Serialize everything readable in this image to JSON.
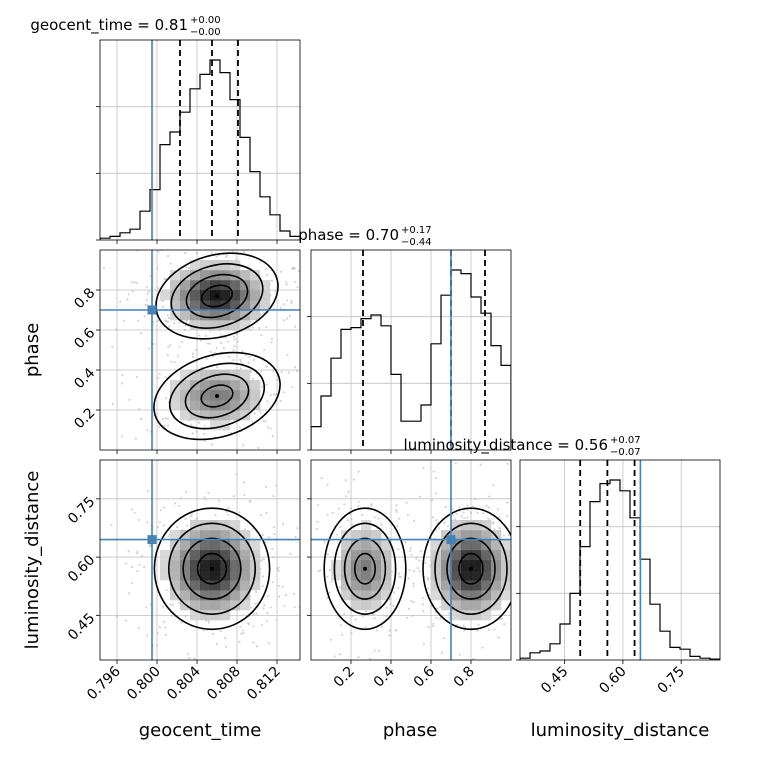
{
  "chart_data": {
    "type": "corner",
    "parameters": [
      "geocent_time",
      "phase",
      "luminosity_distance"
    ],
    "ranges": {
      "geocent_time": [
        0.7943,
        0.8143
      ],
      "phase": [
        0.0,
        1.0
      ],
      "luminosity_distance": [
        0.335,
        0.85
      ]
    },
    "truths": {
      "geocent_time": 0.7995,
      "phase": 0.7,
      "luminosity_distance": 0.645
    },
    "quantiles": {
      "geocent_time": [
        0.8023,
        0.8055,
        0.8081
      ],
      "phase": [
        0.26,
        0.7,
        0.87
      ],
      "luminosity_distance": [
        0.49,
        0.56,
        0.63
      ]
    },
    "titles": {
      "geocent_time": {
        "main": "geocent_time = 0.81",
        "plus": "+0.00",
        "minus": "−0.00"
      },
      "phase": {
        "main": "phase = 0.70",
        "plus": "+0.17",
        "minus": "−0.44"
      },
      "luminosity_distance": {
        "main": "luminosity_distance = 0.56",
        "plus": "+0.07",
        "minus": "−0.07"
      }
    },
    "ticks": {
      "geocent_time": [
        {
          "v": 0.796,
          "label": "0.796"
        },
        {
          "v": 0.8,
          "label": "0.800"
        },
        {
          "v": 0.804,
          "label": "0.804"
        },
        {
          "v": 0.808,
          "label": "0.808"
        },
        {
          "v": 0.812,
          "label": "0.812"
        }
      ],
      "phase": [
        {
          "v": 0.2,
          "label": "0.2"
        },
        {
          "v": 0.4,
          "label": "0.4"
        },
        {
          "v": 0.6,
          "label": "0.6"
        },
        {
          "v": 0.8,
          "label": "0.8"
        }
      ],
      "luminosity_distance": [
        {
          "v": 0.45,
          "label": "0.45"
        },
        {
          "v": 0.6,
          "label": "0.60"
        },
        {
          "v": 0.75,
          "label": "0.75"
        }
      ]
    },
    "hist_bins": 20,
    "histograms": {
      "geocent_time": [
        0.01,
        0.02,
        0.04,
        0.06,
        0.16,
        0.28,
        0.53,
        0.6,
        0.71,
        0.84,
        0.92,
        1.0,
        0.93,
        0.78,
        0.57,
        0.38,
        0.24,
        0.14,
        0.05,
        0.02
      ],
      "phase": [
        0.13,
        0.3,
        0.51,
        0.67,
        0.68,
        0.73,
        0.75,
        0.69,
        0.42,
        0.16,
        0.16,
        0.25,
        0.59,
        0.86,
        1.0,
        0.98,
        0.85,
        0.76,
        0.58,
        0.47
      ],
      "luminosity_distance": [
        0.01,
        0.04,
        0.05,
        0.09,
        0.2,
        0.37,
        0.63,
        0.88,
        0.98,
        1.0,
        0.94,
        0.79,
        0.56,
        0.31,
        0.16,
        0.07,
        0.06,
        0.02,
        0.01,
        0.005
      ]
    },
    "blobs_2d": [
      {
        "pair": [
          "geocent_time",
          "phase"
        ],
        "cx": 0.806,
        "cy": 0.77,
        "sx": 0.0026,
        "sy": 0.085,
        "rot": -0.28,
        "w": 1.0
      },
      {
        "pair": [
          "geocent_time",
          "phase"
        ],
        "cx": 0.806,
        "cy": 0.27,
        "sx": 0.0027,
        "sy": 0.085,
        "rot": -0.3,
        "w": 0.55
      },
      {
        "pair": [
          "geocent_time",
          "luminosity_distance"
        ],
        "cx": 0.8055,
        "cy": 0.57,
        "sx": 0.0024,
        "sy": 0.065,
        "rot": 0.0,
        "w": 1.0
      },
      {
        "pair": [
          "phase",
          "luminosity_distance"
        ],
        "cx": 0.27,
        "cy": 0.57,
        "sx": 0.085,
        "sy": 0.065,
        "rot": 0.0,
        "w": 0.55
      },
      {
        "pair": [
          "phase",
          "luminosity_distance"
        ],
        "cx": 0.8,
        "cy": 0.57,
        "sx": 0.1,
        "sy": 0.065,
        "rot": 0.0,
        "w": 1.0
      }
    ],
    "colors": {
      "truth": "#4682b4",
      "hist": "#000000",
      "grid": "#c0c0c0",
      "scatter": "#b0b0b0"
    },
    "grid": true
  }
}
